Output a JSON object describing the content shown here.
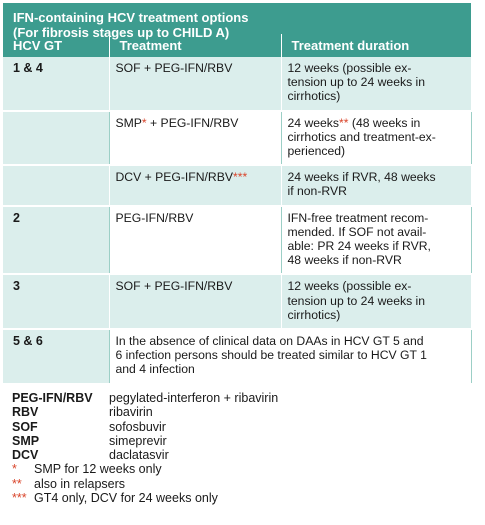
{
  "header": {
    "title_line1": "IFN-containing HCV treatment options",
    "title_line2": "(For fibrosis stages up to CHILD A)"
  },
  "columns": [
    "HCV GT",
    "Treatment",
    "Treatment duration"
  ],
  "rows": [
    {
      "gt": "1 & 4",
      "treatment": "SOF + PEG-IFN/RBV",
      "treatment_mark": "",
      "duration_lines": [
        "12 weeks (possible ex-",
        "tension up to 24 weeks in",
        "cirrhotics)"
      ],
      "duration_mark": ""
    },
    {
      "gt": "",
      "treatment": "SMP",
      "treatment_mark": "*",
      "treatment_rest": " + PEG-IFN/RBV",
      "duration_lines": [
        "24 weeks",
        " (48 weeks in",
        "cirrhotics and treatment-ex-",
        "perienced)"
      ],
      "duration_mark": "**"
    },
    {
      "gt": "",
      "treatment": "DCV + PEG-IFN/RBV",
      "treatment_mark": "***",
      "duration_lines": [
        "24 weeks if RVR, 48 weeks",
        "if non-RVR"
      ],
      "duration_mark": ""
    },
    {
      "gt": "2",
      "treatment": "PEG-IFN/RBV",
      "treatment_mark": "",
      "duration_lines": [
        "IFN-free treatment recom-",
        "mended. If SOF not avail-",
        "able: PR 24 weeks if RVR,",
        "48 weeks if non-RVR"
      ],
      "duration_mark": ""
    },
    {
      "gt": "3",
      "treatment": "SOF + PEG-IFN/RBV",
      "treatment_mark": "",
      "duration_lines": [
        "12 weeks (possible ex-",
        "tension up to 24 weeks in",
        "cirrhotics)"
      ],
      "duration_mark": ""
    },
    {
      "gt": "5 & 6",
      "note_lines": [
        "In the absence of clinical data on DAAs in HCV GT 5 and",
        "6 infection persons should be treated similar to HCV GT 1",
        "and 4 infection"
      ]
    }
  ],
  "abbreviations": [
    {
      "key": "PEG-IFN/RBV",
      "value": "pegylated-interferon + ribavirin"
    },
    {
      "key": "RBV",
      "value": "ribavirin"
    },
    {
      "key": "SOF",
      "value": "sofosbuvir"
    },
    {
      "key": "SMP",
      "value": "simeprevir"
    },
    {
      "key": "DCV",
      "value": "daclatasvir"
    }
  ],
  "footnotes": [
    {
      "mark": "*",
      "text": "SMP for 12 weeks only"
    },
    {
      "mark": "**",
      "text": "also in relapsers"
    },
    {
      "mark": "***",
      "text": "GT4 only, DCV for 24 weeks only"
    }
  ],
  "colors": {
    "accent": "#3d9c8f",
    "row_tint": "#dbeeec",
    "marker": "#d9452b"
  }
}
